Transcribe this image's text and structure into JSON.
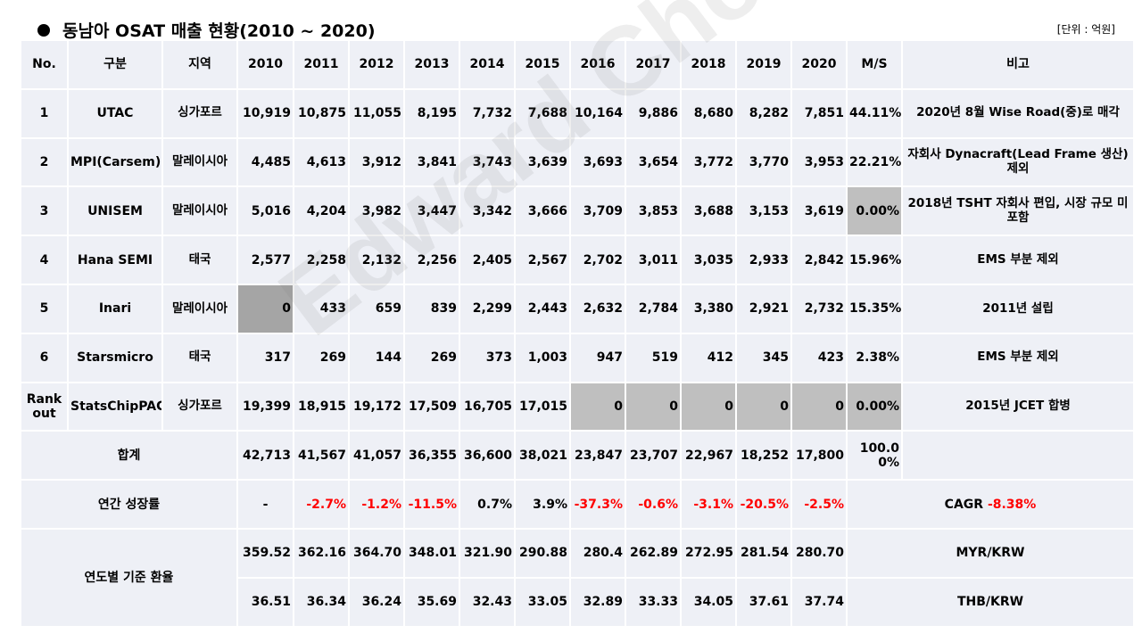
{
  "title": "동남아 OSAT 매출 현황(2010 ~ 2020)",
  "unit": "[단위 : 억원]",
  "watermark": "Edward Choi",
  "header": {
    "no": "No.",
    "category": "구분",
    "region": "지역",
    "years": [
      "2010",
      "2011",
      "2012",
      "2013",
      "2014",
      "2015",
      "2016",
      "2017",
      "2018",
      "2019",
      "2020"
    ],
    "ms": "M/S",
    "note": "비고"
  },
  "companies": [
    {
      "no": "1",
      "name": "UTAC",
      "region": "싱가포르",
      "values": [
        "10,919",
        "10,875",
        "11,055",
        "8,195",
        "7,732",
        "7,688",
        "10,164",
        "9,886",
        "8,680",
        "8,282",
        "7,851"
      ],
      "ms": "44.11%",
      "note": "2020년 8월 Wise Road(중)로 매각"
    },
    {
      "no": "2",
      "name": "MPI(Carsem)",
      "region": "말레이시아",
      "values": [
        "4,485",
        "4,613",
        "3,912",
        "3,841",
        "3,743",
        "3,639",
        "3,693",
        "3,654",
        "3,772",
        "3,770",
        "3,953"
      ],
      "ms": "22.21%",
      "note": "자회사 Dynacraft(Lead Frame 생산) 제외"
    },
    {
      "no": "3",
      "name": "UNISEM",
      "region": "말레이시아",
      "values": [
        "5,016",
        "4,204",
        "3,982",
        "3,447",
        "3,342",
        "3,666",
        "3,709",
        "3,853",
        "3,688",
        "3,153",
        "3,619"
      ],
      "ms": "0.00%",
      "note": "2018년 TSHT 자회사 편입, 시장 규모 미포함"
    },
    {
      "no": "4",
      "name": "Hana SEMI",
      "region": "태국",
      "values": [
        "2,577",
        "2,258",
        "2,132",
        "2,256",
        "2,405",
        "2,567",
        "2,702",
        "3,011",
        "3,035",
        "2,933",
        "2,842"
      ],
      "ms": "15.96%",
      "note": "EMS 부분 제외"
    },
    {
      "no": "5",
      "name": "Inari",
      "region": "말레이시아",
      "values": [
        "0",
        "433",
        "659",
        "839",
        "2,299",
        "2,443",
        "2,632",
        "2,784",
        "3,380",
        "2,921",
        "2,732"
      ],
      "ms": "15.35%",
      "note": "2011년 설립"
    },
    {
      "no": "6",
      "name": "Starsmicro",
      "region": "태국",
      "values": [
        "317",
        "269",
        "144",
        "269",
        "373",
        "1,003",
        "947",
        "519",
        "412",
        "345",
        "423"
      ],
      "ms": "2.38%",
      "note": "EMS 부분 제외"
    },
    {
      "no": "Rank out",
      "name": "StatsChipPAC",
      "region": "싱가포르",
      "values": [
        "19,399",
        "18,915",
        "19,172",
        "17,509",
        "16,705",
        "17,015",
        "0",
        "0",
        "0",
        "0",
        "0"
      ],
      "ms": "0.00%",
      "note": "2015년 JCET 합병"
    }
  ],
  "total": {
    "label": "합계",
    "values": [
      "42,713",
      "41,567",
      "41,057",
      "36,355",
      "36,600",
      "38,021",
      "23,847",
      "23,707",
      "22,967",
      "18,252",
      "17,800"
    ],
    "ms": "100.00%"
  },
  "growth": {
    "label": "연간 성장률",
    "values": [
      "-",
      "-2.7%",
      "-1.2%",
      "-11.5%",
      "0.7%",
      "3.9%",
      "-37.3%",
      "-0.6%",
      "-3.1%",
      "-20.5%",
      "-2.5%"
    ],
    "cagr_label": "CAGR",
    "cagr_value": "-8.38%"
  },
  "exchange": {
    "label": "연도별 기준 환율",
    "myr": {
      "values": [
        "359.52",
        "362.16",
        "364.70",
        "348.01",
        "321.90",
        "290.88",
        "280.4",
        "262.89",
        "272.95",
        "281.54",
        "280.70"
      ],
      "label": "MYR/KRW"
    },
    "thb": {
      "values": [
        "36.51",
        "36.34",
        "36.24",
        "35.69",
        "32.43",
        "33.05",
        "32.89",
        "33.33",
        "34.05",
        "37.61",
        "37.74"
      ],
      "label": "THB/KRW"
    }
  },
  "colors": {
    "cell": "#eef0f6",
    "gray": "#bfbfbf",
    "dark": "#a5a5a5",
    "negative": "#ff0000"
  }
}
